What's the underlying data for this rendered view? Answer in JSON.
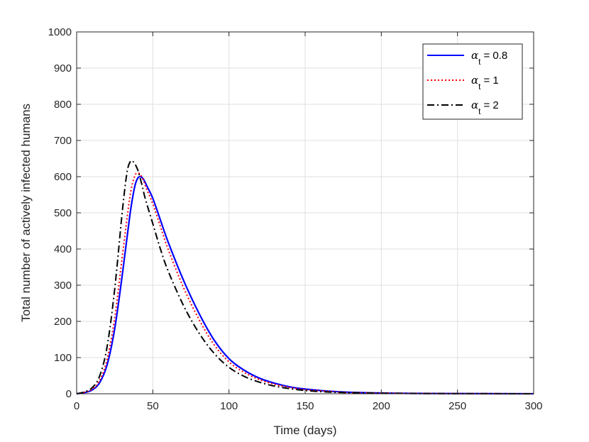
{
  "chart_data": {
    "type": "line",
    "xlabel": "Time (days)",
    "ylabel": "Total number of actively infected humans",
    "xlim": [
      0,
      300
    ],
    "ylim": [
      0,
      1000
    ],
    "xticks": [
      0,
      50,
      100,
      150,
      200,
      250,
      300
    ],
    "yticks": [
      0,
      100,
      200,
      300,
      400,
      500,
      600,
      700,
      800,
      900,
      1000
    ],
    "grid": true,
    "legend_position": "top-right",
    "series": [
      {
        "name_symbol": "α",
        "name_subscript": "t",
        "name_value": "= 0.8",
        "color": "#0000ff",
        "style": "solid",
        "x": [
          0,
          5,
          10,
          15,
          20,
          25,
          30,
          35,
          38,
          40,
          42,
          44,
          46,
          50,
          55,
          60,
          70,
          80,
          90,
          100,
          110,
          120,
          130,
          140,
          150,
          160,
          170,
          180,
          200,
          220,
          250,
          300
        ],
        "y": [
          0,
          3,
          10,
          30,
          80,
          180,
          330,
          495,
          570,
          595,
          600,
          592,
          575,
          540,
          480,
          420,
          315,
          225,
          150,
          97,
          65,
          43,
          29,
          19,
          13,
          9,
          6,
          4,
          2,
          1,
          0.5,
          0
        ]
      },
      {
        "name_symbol": "α",
        "name_subscript": "t",
        "name_value": "= 1",
        "color": "#ff0000",
        "style": "dotted",
        "x": [
          0,
          5,
          10,
          15,
          20,
          25,
          30,
          35,
          38,
          40,
          42,
          44,
          46,
          50,
          55,
          60,
          70,
          80,
          90,
          100,
          110,
          120,
          130,
          140,
          150,
          160,
          170,
          180,
          200,
          220,
          250,
          300
        ],
        "y": [
          0,
          4,
          12,
          36,
          95,
          210,
          380,
          545,
          600,
          610,
          605,
          588,
          565,
          525,
          462,
          400,
          295,
          208,
          137,
          88,
          59,
          39,
          26,
          17,
          11,
          8,
          5,
          3,
          2,
          1,
          0.4,
          0
        ]
      },
      {
        "name_symbol": "α",
        "name_subscript": "t",
        "name_value": "= 2",
        "color": "#000000",
        "style": "dashdot",
        "x": [
          0,
          5,
          10,
          15,
          20,
          25,
          30,
          33,
          35,
          37,
          40,
          43,
          45,
          50,
          55,
          60,
          70,
          80,
          90,
          100,
          110,
          120,
          130,
          140,
          150,
          160,
          170,
          180,
          200,
          220,
          250,
          300
        ],
        "y": [
          0,
          5,
          16,
          48,
          130,
          290,
          505,
          610,
          640,
          642,
          620,
          575,
          540,
          470,
          400,
          340,
          245,
          170,
          113,
          73,
          48,
          32,
          21,
          14,
          9,
          6,
          4,
          3,
          1.5,
          0.7,
          0.3,
          0
        ]
      }
    ]
  }
}
